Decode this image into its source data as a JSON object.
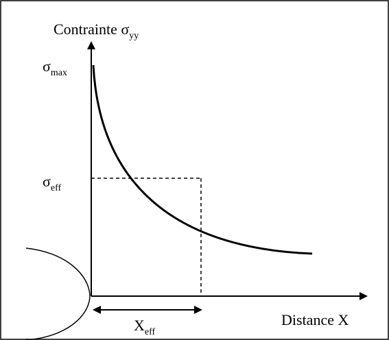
{
  "labels": {
    "y_axis": {
      "main": "Contrainte σ",
      "sub": "yy"
    },
    "sigma_max": {
      "main": "σ",
      "sub": "max"
    },
    "sigma_eff": {
      "main": "σ",
      "sub": "eff"
    },
    "x_axis": "Distance X",
    "x_eff": {
      "main": "X",
      "sub": "eff"
    }
  }
}
